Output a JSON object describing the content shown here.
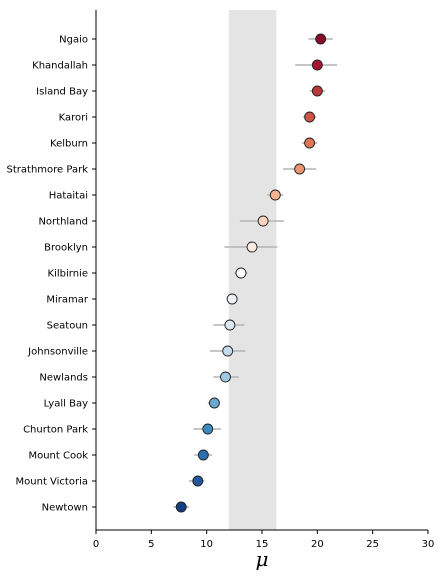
{
  "chart_data": {
    "type": "scatter",
    "orientation": "horizontal",
    "xlabel": "μ",
    "xlim": [
      0,
      30
    ],
    "xticks": [
      0,
      5,
      10,
      15,
      20,
      25,
      30
    ],
    "band": [
      12,
      16.3
    ],
    "band_color": "#e4e4e4",
    "grid": false,
    "categories": [
      "Ngaio",
      "Khandallah",
      "Island Bay",
      "Karori",
      "Kelburn",
      "Strathmore Park",
      "Hataitai",
      "Northland",
      "Brooklyn",
      "Kilbirnie",
      "Miramar",
      "Seatoun",
      "Johnsonville",
      "Newlands",
      "Lyall Bay",
      "Churton Park",
      "Mount Cook",
      "Mount Victoria",
      "Newtown"
    ],
    "points": [
      {
        "label": "Ngaio",
        "mean": 20.3,
        "lo": 19.2,
        "hi": 21.4,
        "color": "#8b0a2a"
      },
      {
        "label": "Khandallah",
        "mean": 20.0,
        "lo": 18.0,
        "hi": 21.8,
        "color": "#a51530"
      },
      {
        "label": "Island Bay",
        "mean": 20.0,
        "lo": 19.3,
        "hi": 20.7,
        "color": "#b8393a"
      },
      {
        "label": "Karori",
        "mean": 19.3,
        "lo": 18.7,
        "hi": 19.9,
        "color": "#cc5545"
      },
      {
        "label": "Kelburn",
        "mean": 19.3,
        "lo": 18.6,
        "hi": 20.0,
        "color": "#e07558"
      },
      {
        "label": "Strathmore Park",
        "mean": 18.4,
        "lo": 16.9,
        "hi": 19.9,
        "color": "#eb9470"
      },
      {
        "label": "Hataitai",
        "mean": 16.2,
        "lo": 15.5,
        "hi": 16.9,
        "color": "#f6b493"
      },
      {
        "label": "Northland",
        "mean": 15.1,
        "lo": 13.0,
        "hi": 17.0,
        "color": "#f8d4c0"
      },
      {
        "label": "Brooklyn",
        "mean": 14.1,
        "lo": 11.6,
        "hi": 16.4,
        "color": "#faeae1"
      },
      {
        "label": "Kilbirnie",
        "mean": 13.1,
        "lo": 12.5,
        "hi": 13.7,
        "color": "#ffffff"
      },
      {
        "label": "Miramar",
        "mean": 12.3,
        "lo": 12.0,
        "hi": 12.6,
        "color": "#ecf1f6"
      },
      {
        "label": "Seatoun",
        "mean": 12.1,
        "lo": 10.6,
        "hi": 13.4,
        "color": "#dce8f2"
      },
      {
        "label": "Johnsonville",
        "mean": 11.9,
        "lo": 10.3,
        "hi": 13.5,
        "color": "#c3dbec"
      },
      {
        "label": "Newlands",
        "mean": 11.7,
        "lo": 10.6,
        "hi": 12.9,
        "color": "#9ec9e2"
      },
      {
        "label": "Lyall Bay",
        "mean": 10.7,
        "lo": 10.1,
        "hi": 11.2,
        "color": "#6aa9d1"
      },
      {
        "label": "Churton Park",
        "mean": 10.1,
        "lo": 8.8,
        "hi": 11.3,
        "color": "#3e89c0"
      },
      {
        "label": "Mount Cook",
        "mean": 9.7,
        "lo": 8.9,
        "hi": 10.5,
        "color": "#2e6ead"
      },
      {
        "label": "Mount Victoria",
        "mean": 9.2,
        "lo": 8.4,
        "hi": 9.8,
        "color": "#22589a"
      },
      {
        "label": "Newtown",
        "mean": 7.7,
        "lo": 7.0,
        "hi": 8.4,
        "color": "#124080"
      }
    ],
    "errorbar_color": "#b3b3b3"
  }
}
